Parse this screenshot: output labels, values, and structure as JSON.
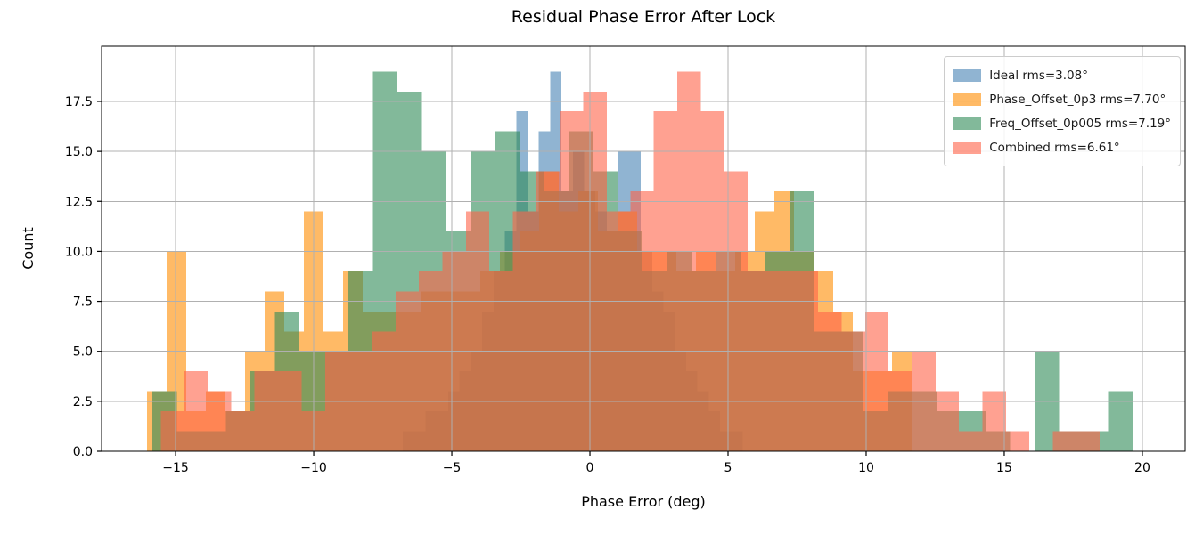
{
  "title": "Residual Phase Error After Lock",
  "xlabel": "Phase Error (deg)",
  "ylabel": "Count",
  "legend": [
    {
      "label": "Ideal  rms=3.08°",
      "color": "#4682b4"
    },
    {
      "label": "Phase_Offset_0p3  rms=7.70°",
      "color": "#ff8c00"
    },
    {
      "label": "Freq_Offset_0p005  rms=7.19°",
      "color": "#2e8b57"
    },
    {
      "label": "Combined  rms=6.61°",
      "color": "#ff6347"
    }
  ],
  "style": {
    "bar_alpha": 0.6,
    "grid_color": "#b0b0b0",
    "spine_color": "#000000",
    "tick_font_px": 14,
    "grid_on": true,
    "legend_position": "upper right"
  },
  "chart_data": {
    "type": "histogram-overlay",
    "title": "Residual Phase Error After Lock",
    "xlabel": "Phase Error (deg)",
    "ylabel": "Count",
    "xlim": [
      -17.68,
      21.55
    ],
    "ylim": [
      0,
      20.26
    ],
    "x_ticks": [
      -15,
      -10,
      -5,
      0,
      5,
      10,
      15,
      20
    ],
    "y_ticks": [
      0.0,
      2.5,
      5.0,
      7.5,
      10.0,
      12.5,
      15.0,
      17.5
    ],
    "series": [
      {
        "name": "Ideal",
        "rms_deg": 3.08,
        "color": "#4682b4",
        "bin_start": -6.77,
        "bin_width": 0.41,
        "counts": [
          1,
          1,
          2,
          2,
          3,
          4,
          5,
          7,
          9,
          11,
          17,
          12,
          16,
          19,
          13,
          15,
          13,
          12,
          11,
          15,
          15,
          10,
          8,
          7,
          5,
          4,
          3,
          2,
          1,
          1
        ]
      },
      {
        "name": "Phase_Offset_0p3",
        "rms_deg": 7.7,
        "color": "#ff8c00",
        "bin_start": -16.04,
        "bin_width": 0.71,
        "counts": [
          3,
          10,
          2,
          3,
          2,
          5,
          8,
          6,
          12,
          6,
          9,
          7,
          7,
          7,
          8,
          8,
          8,
          9,
          10,
          11,
          14,
          12,
          13,
          11,
          12,
          10,
          10,
          9,
          10,
          9,
          10,
          12,
          13,
          10,
          9,
          7,
          4,
          4,
          5
        ]
      },
      {
        "name": "Freq_Offset_0p005",
        "rms_deg": 7.19,
        "color": "#2e8b57",
        "bin_start": -15.84,
        "bin_width": 0.887,
        "counts": [
          3,
          1,
          1,
          2,
          4,
          7,
          5,
          5,
          9,
          19,
          18,
          15,
          11,
          15,
          16,
          14,
          13,
          16,
          14,
          11,
          9,
          10,
          9,
          10,
          9,
          10,
          13,
          6,
          6,
          2,
          3,
          3,
          2,
          2,
          1,
          0,
          5,
          1,
          1,
          3
        ]
      },
      {
        "name": "Combined",
        "rms_deg": 6.61,
        "color": "#ff6347",
        "bin_start": -16.39,
        "bin_width": 0.85,
        "counts": [
          0,
          2,
          4,
          3,
          2,
          4,
          4,
          2,
          5,
          5,
          6,
          8,
          9,
          10,
          12,
          9,
          12,
          14,
          17,
          18,
          12,
          13,
          17,
          19,
          17,
          14,
          9,
          9,
          9,
          7,
          6,
          7,
          4,
          5,
          3,
          1,
          3,
          1,
          0,
          1,
          1
        ]
      }
    ]
  }
}
